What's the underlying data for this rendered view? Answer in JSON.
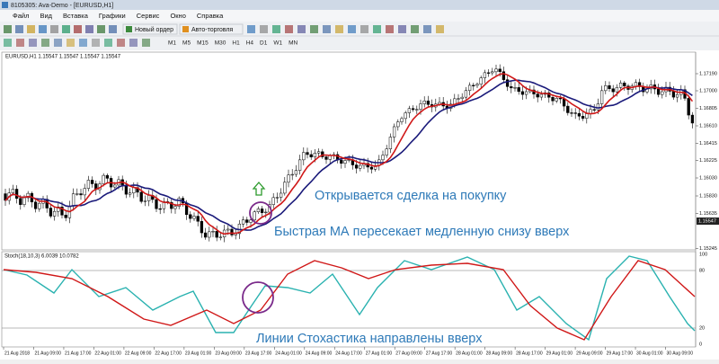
{
  "window": {
    "title": "8105305: Ava-Demo - [EURUSD,H1]"
  },
  "menu": [
    "Файл",
    "Вид",
    "Вставка",
    "Графики",
    "Сервис",
    "Окно",
    "Справка"
  ],
  "toolbar": {
    "new_order": "Новый ордер",
    "auto_trading": "Авто-торговля",
    "timeframes": [
      "M1",
      "M5",
      "M15",
      "M30",
      "H1",
      "H4",
      "D1",
      "W1",
      "MN"
    ]
  },
  "chart": {
    "symbol_label": "EURUSD,H1 1.15547 1.15547 1.15547 1.15547",
    "price_axis": [
      "1.17190",
      "1.17000",
      "1.16805",
      "1.16610",
      "1.16415",
      "1.16225",
      "1.16030",
      "1.15830",
      "1.15635",
      "1.15245"
    ],
    "current_price": "1.15547",
    "annotations": [
      "Открывается сделка на покупку",
      "Быстрая МА пересекает медленную снизу вверх",
      "Линии Стохастика направлены вверх"
    ],
    "indicator_label": "Stoch(18,10,3) 6.0039 10.0782",
    "indicator_axis": [
      "100",
      "80",
      "20",
      "0"
    ],
    "time_axis": [
      "21 Aug 2018",
      "21 Aug 09:00",
      "21 Aug 17:00",
      "22 Aug 01:00",
      "22 Aug 09:00",
      "22 Aug 17:00",
      "23 Aug 01:00",
      "23 Aug 09:00",
      "23 Aug 17:00",
      "24 Aug 01:00",
      "24 Aug 09:00",
      "24 Aug 17:00",
      "27 Aug 01:00",
      "27 Aug 09:00",
      "27 Aug 17:00",
      "28 Aug 01:00",
      "28 Aug 09:00",
      "28 Aug 17:00",
      "29 Aug 01:00",
      "29 Aug 09:00",
      "29 Aug 17:00",
      "30 Aug 01:00",
      "30 Aug 09:00"
    ]
  }
}
